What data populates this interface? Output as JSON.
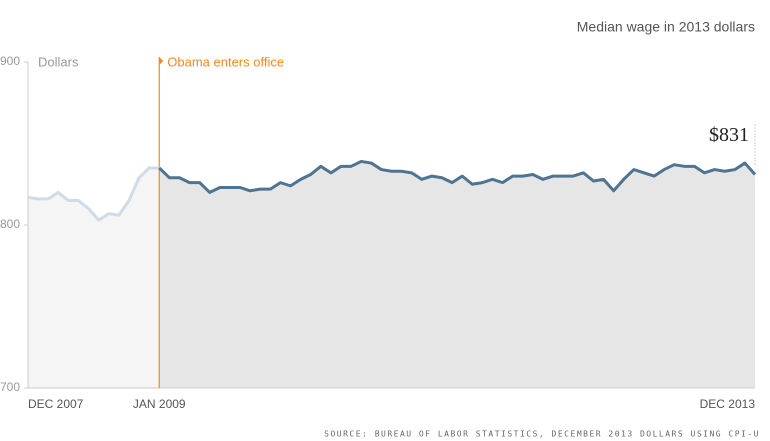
{
  "chart_data": {
    "type": "line",
    "title": "Median wage in 2013 dollars",
    "y_label": "Dollars",
    "source": "SOURCE: BUREAU OF LABOR STATISTICS, DECEMBER 2013 DOLLARS USING CPI-U",
    "annotation": {
      "text": "Obama enters office",
      "x": "JAN 2009",
      "color": "#f08a24"
    },
    "categories": [
      "DEC 2007",
      null,
      null,
      null,
      null,
      null,
      null,
      null,
      null,
      null,
      null,
      null,
      null,
      "JAN 2009",
      null,
      null,
      null,
      null,
      null,
      null,
      null,
      null,
      null,
      null,
      null,
      null,
      null,
      null,
      null,
      null,
      null,
      null,
      null,
      null,
      null,
      null,
      null,
      null,
      null,
      null,
      null,
      null,
      null,
      null,
      null,
      null,
      null,
      null,
      null,
      null,
      null,
      null,
      null,
      null,
      null,
      null,
      null,
      null,
      null,
      null,
      null,
      null,
      null,
      null,
      null,
      null,
      null,
      null,
      null,
      null,
      null,
      null,
      "DEC 2013"
    ],
    "series": [
      {
        "color": "#cfdce7",
        "fill": "#f5f5f5",
        "values": [
          817,
          816,
          816,
          820,
          815,
          815,
          810,
          803,
          807,
          806,
          815,
          829,
          835,
          835,
          null,
          null,
          null,
          null,
          null,
          null,
          null,
          null,
          null,
          null,
          null,
          null,
          null,
          null,
          null,
          null,
          null,
          null,
          null,
          null,
          null,
          null,
          null,
          null,
          null,
          null,
          null,
          null,
          null,
          null,
          null,
          null,
          null,
          null,
          null,
          null,
          null,
          null,
          null,
          null,
          null,
          null,
          null,
          null,
          null,
          null,
          null,
          null,
          null,
          null,
          null,
          null,
          null,
          null,
          null,
          null,
          null,
          null,
          null
        ]
      },
      {
        "color": "#4e7491",
        "fill": "#e6e6e6",
        "values": [
          null,
          null,
          null,
          null,
          null,
          null,
          null,
          null,
          null,
          null,
          null,
          null,
          null,
          835,
          829,
          829,
          826,
          826,
          820,
          823,
          823,
          823,
          821,
          822,
          822,
          826,
          824,
          828,
          831,
          836,
          832,
          836,
          836,
          839,
          838,
          834,
          833,
          833,
          832,
          828,
          830,
          829,
          826,
          830,
          825,
          826,
          828,
          826,
          830,
          830,
          831,
          828,
          830,
          830,
          830,
          832,
          827,
          828,
          821,
          828,
          834,
          832,
          830,
          834,
          837,
          836,
          836,
          832,
          834,
          833,
          834,
          838,
          831
        ],
        "value_labels": [
          null,
          null,
          null,
          null,
          null,
          null,
          null,
          null,
          null,
          null,
          null,
          null,
          null,
          null,
          null,
          null,
          null,
          null,
          null,
          null,
          null,
          null,
          null,
          null,
          null,
          null,
          null,
          null,
          null,
          null,
          null,
          null,
          null,
          null,
          null,
          null,
          null,
          null,
          null,
          null,
          null,
          null,
          null,
          null,
          null,
          null,
          null,
          null,
          null,
          null,
          null,
          null,
          null,
          null,
          null,
          null,
          null,
          null,
          null,
          null,
          null,
          null,
          null,
          null,
          null,
          null,
          null,
          null,
          null,
          null,
          null,
          null,
          "$831"
        ]
      }
    ],
    "ylim": [
      700,
      900
    ],
    "yticks": [
      700,
      800,
      900
    ]
  }
}
